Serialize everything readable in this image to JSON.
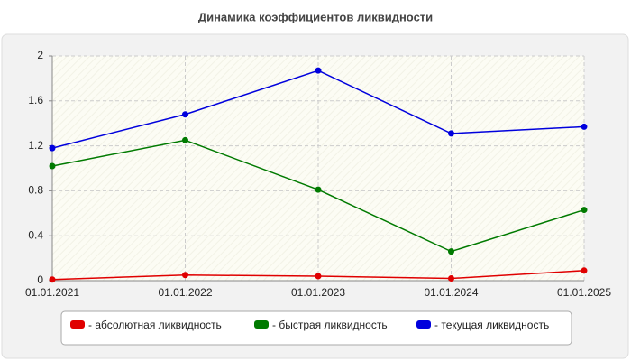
{
  "chart_data": {
    "type": "line",
    "title": "Динамика коэффициентов ликвидности",
    "categories": [
      "01.01.2021",
      "01.01.2022",
      "01.01.2023",
      "01.01.2024",
      "01.01.2025"
    ],
    "series": [
      {
        "name": "- абсолютная ликвидность",
        "color": "#e00000",
        "values": [
          0.01,
          0.05,
          0.04,
          0.02,
          0.09
        ]
      },
      {
        "name": "- быстрая ликвидность",
        "color": "#007a00",
        "values": [
          1.02,
          1.25,
          0.81,
          0.26,
          0.63
        ]
      },
      {
        "name": "- текущая ликвидность",
        "color": "#0000dd",
        "values": [
          1.18,
          1.48,
          1.87,
          1.31,
          1.37
        ]
      }
    ],
    "ylim": [
      0,
      2
    ],
    "yticks": [
      0,
      0.4,
      0.8,
      1.2,
      1.6,
      2
    ],
    "grid": true
  }
}
